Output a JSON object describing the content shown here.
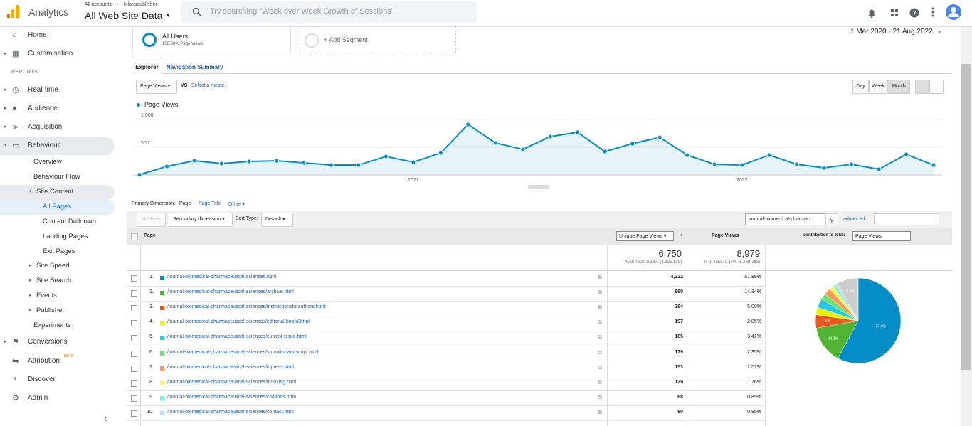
{
  "header": {
    "product": "Analytics",
    "breadcrumb": [
      "All accounts",
      "hilarispublisher"
    ],
    "view": "All Web Site Data",
    "search_placeholder": "Try searching “Week over Week Growth of Sessions”"
  },
  "sidebar": {
    "items": [
      "Home",
      "Customisation",
      "REPORTS",
      "Real-time",
      "Audience",
      "Acquisition",
      "Behaviour",
      "Overview",
      "Behaviour Flow",
      "Site Content",
      "All Pages",
      "Content Drilldown",
      "Landing Pages",
      "Exit Pages",
      "Site Speed",
      "Site Search",
      "Events",
      "Publisher",
      "Experiments",
      "Conversions",
      "Attribution",
      "Discover",
      "Admin"
    ],
    "badge": "BETA"
  },
  "segments": {
    "active": "All Users",
    "active_detail": "100.00% Page Views",
    "add": "+ Add Segment"
  },
  "date_range": "1 Mar 2020 - 21 Aug 2022",
  "tabs": [
    "Explorer",
    "Navigation Summary"
  ],
  "metric_picker": {
    "metric": "Page Views",
    "vs": "VS",
    "select": "Select a metric"
  },
  "granularity": [
    "Day",
    "Week",
    "Month"
  ],
  "chart_data": [
    {
      "type": "line",
      "categories": [
        null,
        null,
        null,
        null,
        null,
        null,
        null,
        null,
        null,
        null,
        "2021",
        null,
        null,
        null,
        null,
        null,
        null,
        null,
        null,
        null,
        null,
        null,
        "2022",
        null,
        null,
        null,
        null,
        null,
        null,
        null
      ],
      "series": [
        {
          "name": "Page Views",
          "color": "#058dc7",
          "values": [
            5,
            154,
            256,
            205,
            244,
            256,
            218,
            179,
            179,
            333,
            231,
            397,
            910,
            577,
            462,
            692,
            769,
            423,
            564,
            679,
            359,
            192,
            179,
            359,
            192,
            128,
            192,
            103,
            372,
            179
          ]
        }
      ],
      "ylim": [
        0,
        1200
      ],
      "yticks": [
        500,
        {
          "value": 1000,
          "label": "1,000"
        }
      ],
      "grid": true
    },
    {
      "type": "pie",
      "values": [
        57.89,
        14.34,
        5,
        2.85,
        3.41,
        2.35,
        2.51,
        1.76,
        0.89,
        0.85,
        8.15
      ],
      "value_labels": [
        "57.9%",
        "14.3%",
        "5%",
        null,
        null,
        null,
        null,
        null,
        null,
        null,
        "8.2%"
      ],
      "colors": [
        "#058dc7",
        "#50b432",
        "#ed561b",
        "#edef00",
        "#24cbe5",
        "#64e572",
        "#ff9655",
        "#fff263",
        "#6af9c4",
        "#b2deff",
        "#cccccc"
      ]
    }
  ],
  "dimensions": {
    "label": "Primary Dimension:",
    "options": [
      "Page",
      "Page Title",
      "Other"
    ]
  },
  "toolbar": {
    "plot_rows": "Plot Rows",
    "secondary": "Secondary dimension",
    "sort_label": "Sort Type:",
    "sort": "Default",
    "search": "journal-biomedical-pharmac",
    "advanced": "advanced"
  },
  "table": {
    "columns": [
      "Page",
      "Unique Page Views",
      "Page Views",
      "contribution to total:"
    ],
    "contribution_metric": "Page Views",
    "totals": {
      "unique_page_views": "6,750",
      "unique_detail": "% of Total: 0.16% (4,205,139)",
      "page_views": "8,979",
      "page_views_detail": "% of Total: 0.17% (5,268,763)"
    },
    "rows": [
      [
        "1.",
        "/journal-biomedical-pharmaceutical-sciences.html",
        "4,222",
        "57.89%"
      ],
      [
        "2.",
        "/journal-biomedical-pharmaceutical-sciences/archive.html",
        "690",
        "14.34%"
      ],
      [
        "3.",
        "/journal-biomedical-pharmaceutical-sciences/instructionsforauthors.html",
        "394",
        "5.00%"
      ],
      [
        "4.",
        "/journal-biomedical-pharmaceutical-sciences/editorial-board.html",
        "197",
        "2.85%"
      ],
      [
        "5.",
        "/journal-biomedical-pharmaceutical-sciences/current-issue.html",
        "185",
        "3.41%"
      ],
      [
        "6.",
        "/journal-biomedical-pharmaceutical-sciences/submit-manuscript.html",
        "179",
        "2.35%"
      ],
      [
        "7.",
        "/journal-biomedical-pharmaceutical-sciences/inpress.html",
        "153",
        "2.51%"
      ],
      [
        "8.",
        "/journal-biomedical-pharmaceutical-sciences/indexing.html",
        "129",
        "1.76%"
      ],
      [
        "9.",
        "/journal-biomedical-pharmaceutical-sciences/citations.html",
        "68",
        "0.89%"
      ],
      [
        "10.",
        "/journal-biomedical-pharmaceutical-sciences/contact.html",
        "60",
        "0.85%"
      ]
    ]
  }
}
